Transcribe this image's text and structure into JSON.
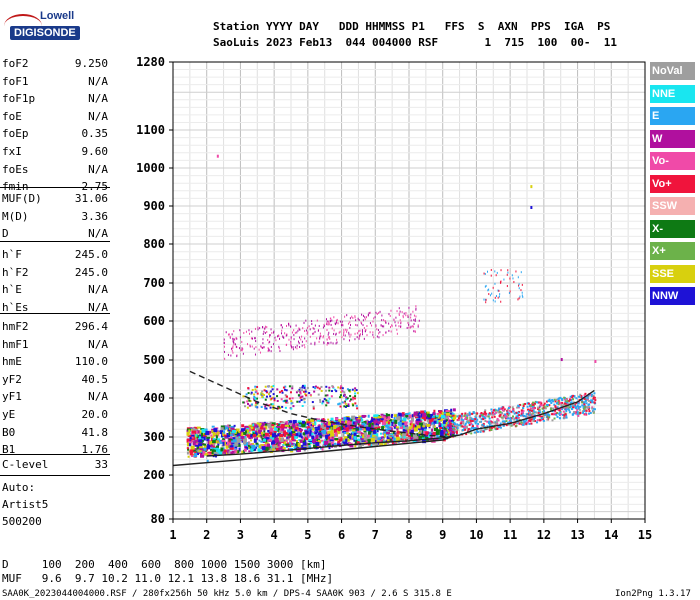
{
  "logo": {
    "line1": "Lowell",
    "line2": "DIGISONDE"
  },
  "header": {
    "line1": "Station YYYY DAY   DDD HHMMSS P1   FFS  S  AXN  PPS  IGA  PS",
    "line2": "SaoLuis 2023 Feb13  044 004000 RSF       1  715  100  00-  11"
  },
  "params_group1": [
    {
      "name": "foF2",
      "value": "9.250"
    },
    {
      "name": "foF1",
      "value": "N/A"
    },
    {
      "name": "foF1p",
      "value": "N/A"
    },
    {
      "name": "foE",
      "value": "N/A"
    },
    {
      "name": "foEp",
      "value": "0.35"
    },
    {
      "name": "fxI",
      "value": "9.60"
    },
    {
      "name": "foEs",
      "value": "N/A"
    },
    {
      "name": "fmin",
      "value": "2.75"
    }
  ],
  "params_group2": [
    {
      "name": "MUF(D)",
      "value": "31.06"
    },
    {
      "name": "M(D)",
      "value": "3.36"
    },
    {
      "name": "D",
      "value": "N/A"
    }
  ],
  "params_group3": [
    {
      "name": "h`F",
      "value": "245.0"
    },
    {
      "name": "h`F2",
      "value": "245.0"
    },
    {
      "name": "h`E",
      "value": "N/A"
    },
    {
      "name": "h`Es",
      "value": "N/A"
    }
  ],
  "params_group4": [
    {
      "name": "hmF2",
      "value": "296.4"
    },
    {
      "name": "hmF1",
      "value": "N/A"
    },
    {
      "name": "hmE",
      "value": "110.0"
    },
    {
      "name": "yF2",
      "value": "40.5"
    },
    {
      "name": "yF1",
      "value": "N/A"
    },
    {
      "name": "yE",
      "value": "20.0"
    },
    {
      "name": "B0",
      "value": "41.8"
    },
    {
      "name": "B1",
      "value": "1.76"
    }
  ],
  "c_level": {
    "name": "C-level",
    "value": "33"
  },
  "auto": {
    "line1": "Auto:",
    "line2": "Artist5",
    "line3": "500200"
  },
  "legend": [
    {
      "label": "NoVal",
      "color": "#9e9e9e"
    },
    {
      "label": "NNE",
      "color": "#19e6f0"
    },
    {
      "label": "E",
      "color": "#2aa6f2"
    },
    {
      "label": "W",
      "color": "#b0109e"
    },
    {
      "label": "Vo-",
      "color": "#f04aa8"
    },
    {
      "label": "Vo+",
      "color": "#f0143c"
    },
    {
      "label": "SSW",
      "color": "#f5b0b0"
    },
    {
      "label": "X-",
      "color": "#0e7a14"
    },
    {
      "label": "X+",
      "color": "#6cb24a"
    },
    {
      "label": "SSE",
      "color": "#d8d00e"
    },
    {
      "label": "NNW",
      "color": "#1e12d6"
    }
  ],
  "chart_data": {
    "type": "scatter",
    "title": "",
    "xlabel": "",
    "ylabel": "",
    "x_ticks": [
      1,
      2,
      3,
      4,
      5,
      6,
      7,
      8,
      9,
      10,
      11,
      12,
      13,
      14,
      15
    ],
    "xlim": [
      1,
      15
    ],
    "y_ticks": [
      80,
      200,
      300,
      400,
      500,
      600,
      700,
      800,
      900,
      1000,
      1100,
      1280
    ],
    "ylim": [
      80,
      1280
    ],
    "y_scale": "nonlinear (ionogram virtual height)",
    "grid": true,
    "series": [
      {
        "name": "",
        "points": [
          [
            2.0,
            250
          ],
          [
            3.0,
            255
          ],
          [
            4.0,
            262
          ],
          [
            5.0,
            270
          ],
          [
            6.0,
            278
          ],
          [
            7.0,
            285
          ],
          [
            8.0,
            290
          ],
          [
            9.0,
            298
          ],
          [
            9.5,
            305
          ],
          [
            10,
            320
          ],
          [
            11,
            335
          ],
          [
            12,
            360
          ],
          [
            13,
            390
          ],
          [
            13.5,
            420
          ]
        ]
      },
      {
        "name": "",
        "points": [
          [
            1.5,
            470
          ],
          [
            2.5,
            430
          ],
          [
            3.5,
            390
          ],
          [
            4.5,
            360
          ],
          [
            5.5,
            340
          ],
          [
            7,
            320
          ],
          [
            8.5,
            305
          ],
          [
            9.2,
            300
          ]
        ]
      },
      {
        "name": "",
        "points": [
          [
            1,
            225
          ],
          [
            3,
            240
          ],
          [
            5,
            258
          ],
          [
            7,
            275
          ],
          [
            9,
            292
          ],
          [
            9.25,
            300
          ]
        ]
      }
    ]
  },
  "bottom": {
    "d_row": "D     100  200  400  600  800 1000 1500 3000 [km]",
    "muf_row": "MUF   9.6  9.7 10.2 11.0 12.1 13.8 18.6 31.1 [MHz]",
    "footer_left": "SAA0K_2023044004000.RSF / 280fx256h 50 kHz 5.0 km / DPS-4 SAA0K 903 / 2.6 S 315.8 E",
    "footer_right": "Ion2Png 1.3.17"
  }
}
